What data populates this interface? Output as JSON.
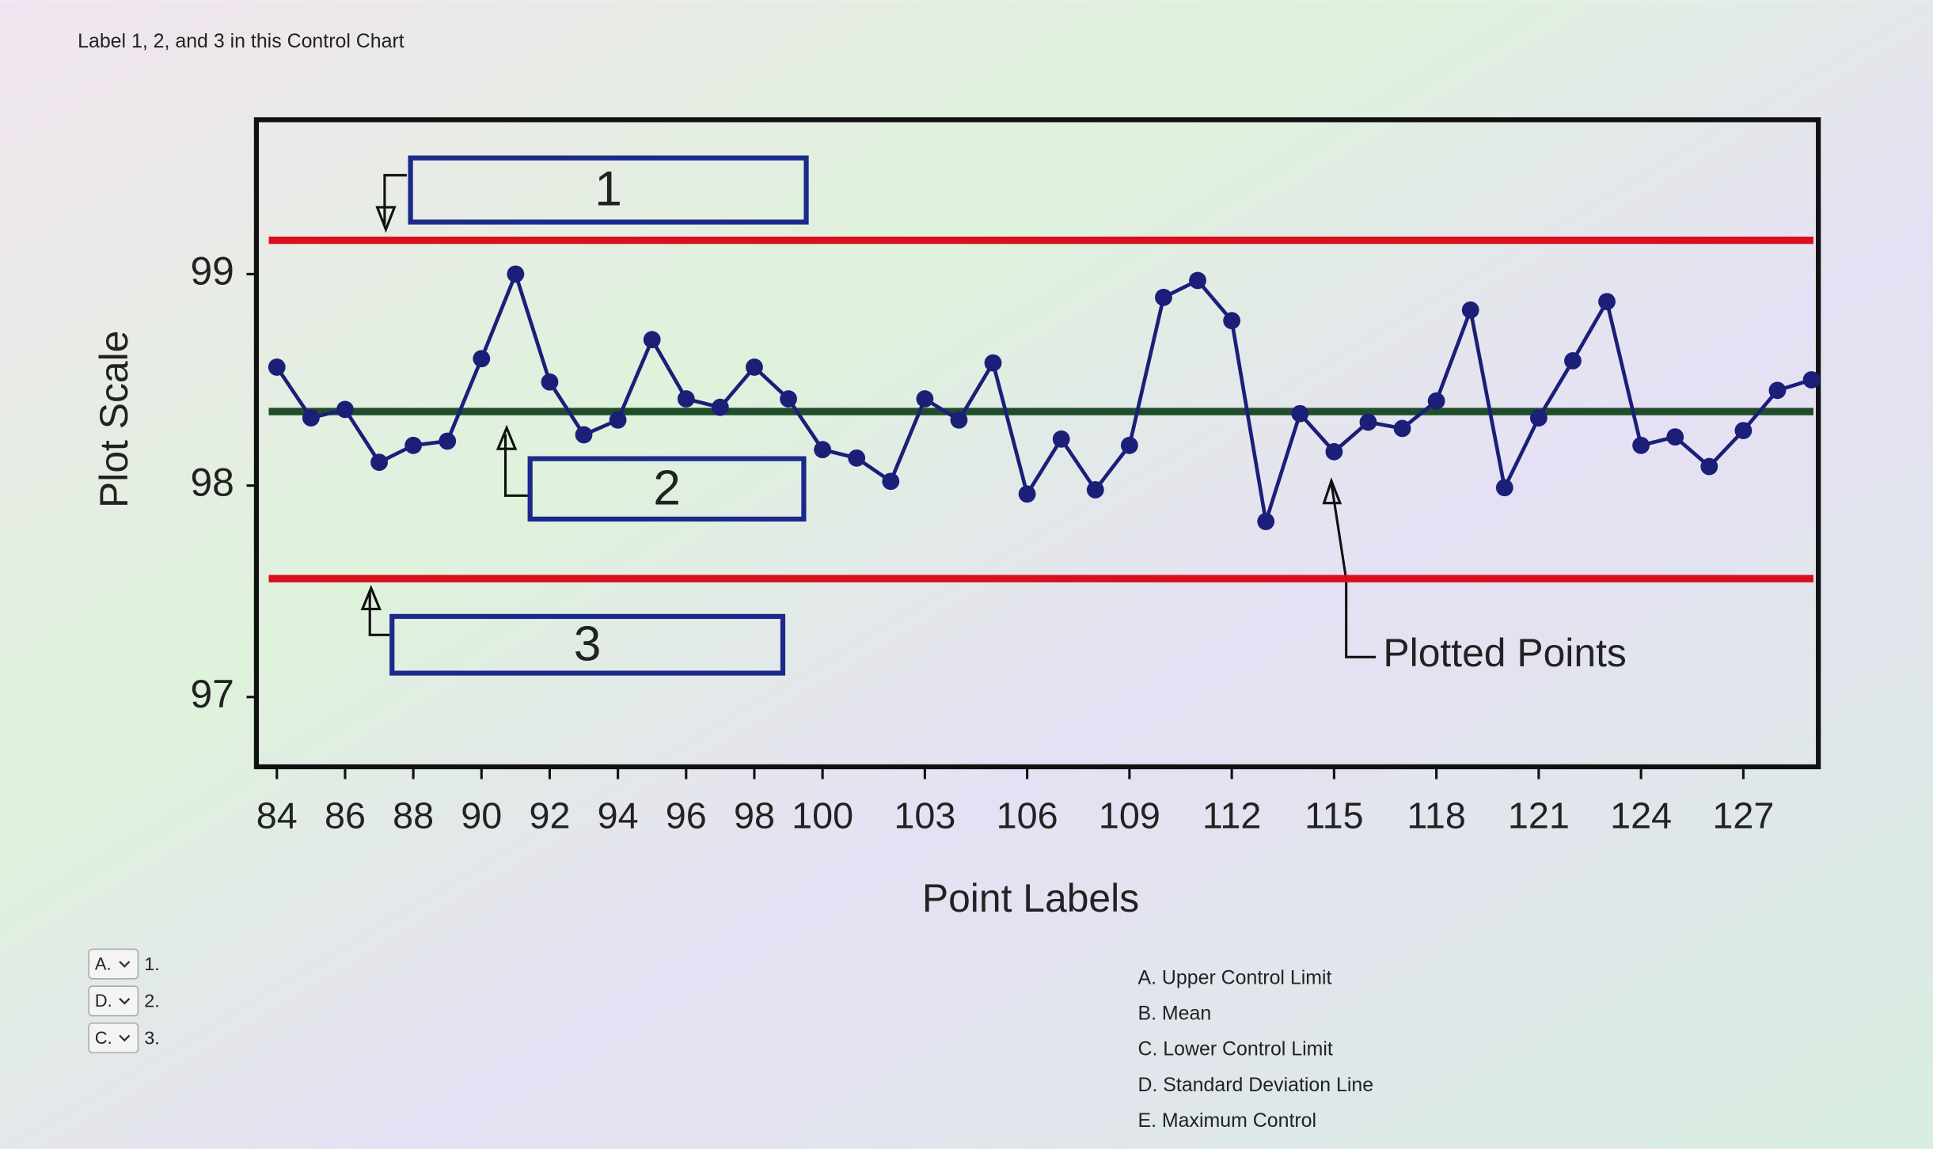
{
  "question": "Label 1, 2, and 3 in this Control Chart",
  "answers": [
    {
      "choice": "A.",
      "item": "1."
    },
    {
      "choice": "D.",
      "item": "2."
    },
    {
      "choice": "C.",
      "item": "3."
    }
  ],
  "options": [
    "A. Upper Control Limit",
    "B. Mean",
    "C. Lower Control Limit",
    "D. Standard Deviation Line",
    "E. Maximum Control"
  ],
  "chart_data": {
    "type": "line",
    "y_label": "Plot Scale",
    "x_label": "Point Labels",
    "x": [
      84,
      85,
      86,
      87,
      88,
      89,
      90,
      91,
      92,
      93,
      94,
      95,
      96,
      97,
      98,
      99,
      100,
      101,
      102,
      103,
      104,
      105,
      106,
      107,
      108,
      109,
      110,
      111,
      112,
      113,
      114,
      115,
      116,
      117,
      118,
      119,
      120,
      121,
      122,
      123,
      124,
      125,
      126,
      127,
      128,
      129
    ],
    "values": [
      98.56,
      98.32,
      98.36,
      98.11,
      98.19,
      98.21,
      98.6,
      99.0,
      98.49,
      98.24,
      98.31,
      98.69,
      98.41,
      98.37,
      98.56,
      98.41,
      98.17,
      98.13,
      98.02,
      98.41,
      98.31,
      98.58,
      97.96,
      98.22,
      97.98,
      98.19,
      98.89,
      98.97,
      98.78,
      97.83,
      98.34,
      98.16,
      98.3,
      98.27,
      98.4,
      98.83,
      97.99,
      98.32,
      98.59,
      98.87,
      98.19,
      98.23,
      98.09,
      98.26,
      98.45,
      98.5
    ],
    "color": "#1b1f78",
    "ucl": 99.16,
    "mean": 98.35,
    "lcl": 97.56,
    "limit_color": "#d8101e",
    "mean_color": "#1f4d2a",
    "xlim": [
      83.4,
      129.2
    ],
    "ylim": [
      96.67,
      99.73
    ],
    "xticks": [
      84,
      86,
      88,
      90,
      92,
      94,
      96,
      98,
      100,
      103,
      106,
      109,
      112,
      115,
      118,
      121,
      124,
      127
    ],
    "yticks": [
      97,
      98,
      99
    ],
    "annotations": [
      "1",
      "2",
      "3",
      "Plotted Points"
    ]
  }
}
